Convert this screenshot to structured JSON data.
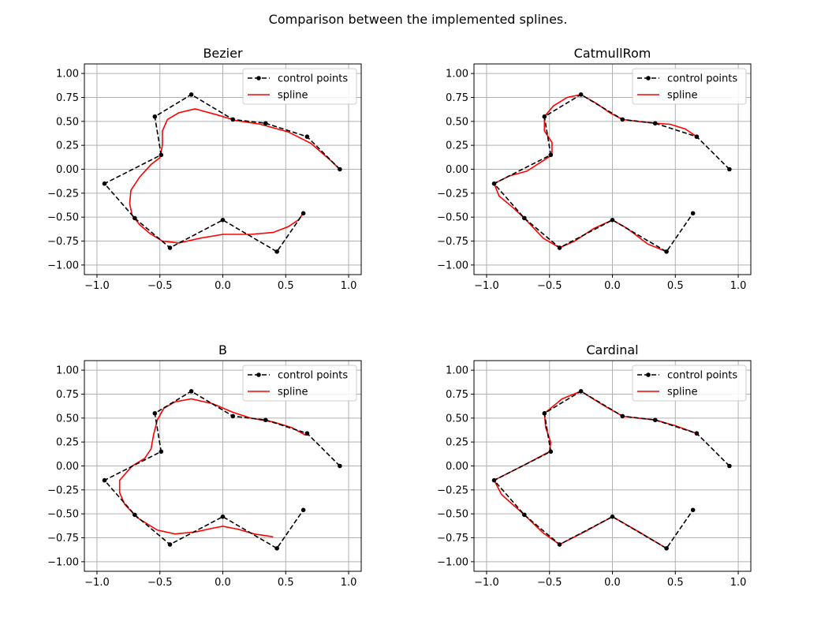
{
  "figure": {
    "title": "Comparison between the implemented splines."
  },
  "style": {
    "control_color": "#000000",
    "spline_color": "#ff0000",
    "grid_color": "#b0b0b0"
  },
  "chart_data": [
    {
      "type": "line",
      "title": "Bezier",
      "xlim": [
        -1.1,
        1.1
      ],
      "ylim": [
        -1.1,
        1.1
      ],
      "xticks": [
        -1.0,
        -0.5,
        0.0,
        0.5,
        1.0
      ],
      "yticks": [
        -1.0,
        -0.75,
        -0.5,
        -0.25,
        0.0,
        0.25,
        0.5,
        0.75,
        1.0
      ],
      "xtick_labels": [
        "−1.0",
        "−0.5",
        "0.0",
        "0.5",
        "1.0"
      ],
      "ytick_labels": [
        "−1.00",
        "−0.75",
        "−0.50",
        "−0.25",
        "0.00",
        "0.25",
        "0.50",
        "0.75",
        "1.00"
      ],
      "grid": true,
      "legend": {
        "position": "top-right",
        "entries": [
          "control points",
          "spline"
        ]
      },
      "series": [
        {
          "name": "control points",
          "style": "dashed-marker",
          "x": [
            0.93,
            0.67,
            0.34,
            0.08,
            -0.25,
            -0.54,
            -0.49,
            -0.94,
            -0.7,
            -0.42,
            0.0,
            0.43,
            0.64
          ],
          "y": [
            0.0,
            0.34,
            0.48,
            0.52,
            0.78,
            0.55,
            0.15,
            -0.15,
            -0.51,
            -0.82,
            -0.53,
            -0.86,
            -0.46
          ]
        },
        {
          "name": "spline",
          "style": "solid",
          "x": [
            0.93,
            0.85,
            0.7,
            0.52,
            0.3,
            0.1,
            -0.05,
            -0.22,
            -0.35,
            -0.44,
            -0.48,
            -0.48,
            -0.5,
            -0.57,
            -0.66,
            -0.73,
            -0.74,
            -0.72,
            -0.66,
            -0.58,
            -0.48,
            -0.35,
            -0.18,
            0.0,
            0.22,
            0.4,
            0.52,
            0.6,
            0.64
          ],
          "y": [
            0.0,
            0.1,
            0.27,
            0.39,
            0.47,
            0.51,
            0.57,
            0.63,
            0.59,
            0.52,
            0.4,
            0.25,
            0.12,
            0.05,
            -0.08,
            -0.22,
            -0.36,
            -0.48,
            -0.58,
            -0.67,
            -0.75,
            -0.77,
            -0.72,
            -0.68,
            -0.68,
            -0.66,
            -0.6,
            -0.53,
            -0.46
          ]
        }
      ]
    },
    {
      "type": "line",
      "title": "CatmullRom",
      "xlim": [
        -1.1,
        1.1
      ],
      "ylim": [
        -1.1,
        1.1
      ],
      "xticks": [
        -1.0,
        -0.5,
        0.0,
        0.5,
        1.0
      ],
      "yticks": [
        -1.0,
        -0.75,
        -0.5,
        -0.25,
        0.0,
        0.25,
        0.5,
        0.75,
        1.0
      ],
      "xtick_labels": [
        "−1.0",
        "−0.5",
        "0.0",
        "0.5",
        "1.0"
      ],
      "ytick_labels": [
        "−1.00",
        "−0.75",
        "−0.50",
        "−0.25",
        "0.00",
        "0.25",
        "0.50",
        "0.75",
        "1.00"
      ],
      "grid": true,
      "legend": {
        "position": "top-right",
        "entries": [
          "control points",
          "spline"
        ]
      },
      "series": [
        {
          "name": "control points",
          "style": "dashed-marker",
          "x": [
            0.93,
            0.67,
            0.34,
            0.08,
            -0.25,
            -0.54,
            -0.49,
            -0.94,
            -0.7,
            -0.42,
            0.0,
            0.43,
            0.64
          ],
          "y": [
            0.0,
            0.34,
            0.48,
            0.52,
            0.78,
            0.55,
            0.15,
            -0.15,
            -0.51,
            -0.82,
            -0.53,
            -0.86,
            -0.46
          ]
        },
        {
          "name": "spline",
          "style": "solid",
          "x": [
            0.67,
            0.58,
            0.46,
            0.34,
            0.2,
            0.08,
            -0.02,
            -0.13,
            -0.25,
            -0.36,
            -0.47,
            -0.54,
            -0.54,
            -0.48,
            -0.48,
            -0.55,
            -0.68,
            -0.82,
            -0.94,
            -0.9,
            -0.8,
            -0.7,
            -0.55,
            -0.42,
            -0.3,
            -0.15,
            0.0,
            0.12,
            0.28,
            0.43
          ],
          "y": [
            0.34,
            0.42,
            0.47,
            0.48,
            0.5,
            0.52,
            0.59,
            0.69,
            0.78,
            0.75,
            0.66,
            0.55,
            0.4,
            0.28,
            0.15,
            0.09,
            -0.02,
            -0.07,
            -0.15,
            -0.28,
            -0.39,
            -0.51,
            -0.72,
            -0.82,
            -0.75,
            -0.62,
            -0.53,
            -0.62,
            -0.78,
            -0.86
          ]
        }
      ]
    },
    {
      "type": "line",
      "title": "B",
      "xlim": [
        -1.1,
        1.1
      ],
      "ylim": [
        -1.1,
        1.1
      ],
      "xticks": [
        -1.0,
        -0.5,
        0.0,
        0.5,
        1.0
      ],
      "yticks": [
        -1.0,
        -0.75,
        -0.5,
        -0.25,
        0.0,
        0.25,
        0.5,
        0.75,
        1.0
      ],
      "xtick_labels": [
        "−1.0",
        "−0.5",
        "0.0",
        "0.5",
        "1.0"
      ],
      "ytick_labels": [
        "−1.00",
        "−0.75",
        "−0.50",
        "−0.25",
        "0.00",
        "0.25",
        "0.50",
        "0.75",
        "1.00"
      ],
      "grid": true,
      "legend": {
        "position": "top-right",
        "entries": [
          "control points",
          "spline"
        ]
      },
      "series": [
        {
          "name": "control points",
          "style": "dashed-marker",
          "x": [
            0.93,
            0.67,
            0.34,
            0.08,
            -0.25,
            -0.54,
            -0.49,
            -0.94,
            -0.7,
            -0.42,
            0.0,
            0.43,
            0.64
          ],
          "y": [
            0.0,
            0.34,
            0.48,
            0.52,
            0.78,
            0.55,
            0.15,
            -0.15,
            -0.51,
            -0.82,
            -0.53,
            -0.86,
            -0.46
          ]
        },
        {
          "name": "spline",
          "style": "solid",
          "x": [
            0.66,
            0.55,
            0.4,
            0.22,
            0.08,
            -0.08,
            -0.25,
            -0.38,
            -0.47,
            -0.52,
            -0.55,
            -0.57,
            -0.62,
            -0.72,
            -0.82,
            -0.82,
            -0.78,
            -0.68,
            -0.52,
            -0.38,
            -0.22,
            -0.08,
            0.0,
            0.12,
            0.25,
            0.4
          ],
          "y": [
            0.32,
            0.4,
            0.46,
            0.5,
            0.56,
            0.65,
            0.7,
            0.67,
            0.6,
            0.48,
            0.33,
            0.18,
            0.08,
            0.0,
            -0.15,
            -0.28,
            -0.4,
            -0.54,
            -0.67,
            -0.71,
            -0.69,
            -0.65,
            -0.63,
            -0.66,
            -0.71,
            -0.74
          ]
        }
      ]
    },
    {
      "type": "line",
      "title": "Cardinal",
      "xlim": [
        -1.1,
        1.1
      ],
      "ylim": [
        -1.1,
        1.1
      ],
      "xticks": [
        -1.0,
        -0.5,
        0.0,
        0.5,
        1.0
      ],
      "yticks": [
        -1.0,
        -0.75,
        -0.5,
        -0.25,
        0.0,
        0.25,
        0.5,
        0.75,
        1.0
      ],
      "xtick_labels": [
        "−1.0",
        "−0.5",
        "0.0",
        "0.5",
        "1.0"
      ],
      "ytick_labels": [
        "−1.00",
        "−0.75",
        "−0.50",
        "−0.25",
        "0.00",
        "0.25",
        "0.50",
        "0.75",
        "1.00"
      ],
      "grid": true,
      "legend": {
        "position": "top-right",
        "entries": [
          "control points",
          "spline"
        ]
      },
      "series": [
        {
          "name": "control points",
          "style": "dashed-marker",
          "x": [
            0.93,
            0.67,
            0.34,
            0.08,
            -0.25,
            -0.54,
            -0.49,
            -0.94,
            -0.7,
            -0.42,
            0.0,
            0.43,
            0.64
          ],
          "y": [
            0.0,
            0.34,
            0.48,
            0.52,
            0.78,
            0.55,
            0.15,
            -0.15,
            -0.51,
            -0.82,
            -0.53,
            -0.86,
            -0.46
          ]
        },
        {
          "name": "spline",
          "style": "solid",
          "x": [
            0.67,
            0.5,
            0.34,
            0.2,
            0.08,
            -0.08,
            -0.25,
            -0.4,
            -0.54,
            -0.53,
            -0.49,
            -0.5,
            -0.7,
            -0.94,
            -0.88,
            -0.7,
            -0.55,
            -0.42,
            -0.21,
            0.0,
            0.2,
            0.43
          ],
          "y": [
            0.34,
            0.42,
            0.48,
            0.5,
            0.52,
            0.64,
            0.78,
            0.7,
            0.55,
            0.4,
            0.25,
            0.15,
            0.01,
            -0.15,
            -0.3,
            -0.51,
            -0.7,
            -0.82,
            -0.68,
            -0.53,
            -0.68,
            -0.86
          ]
        }
      ]
    }
  ]
}
